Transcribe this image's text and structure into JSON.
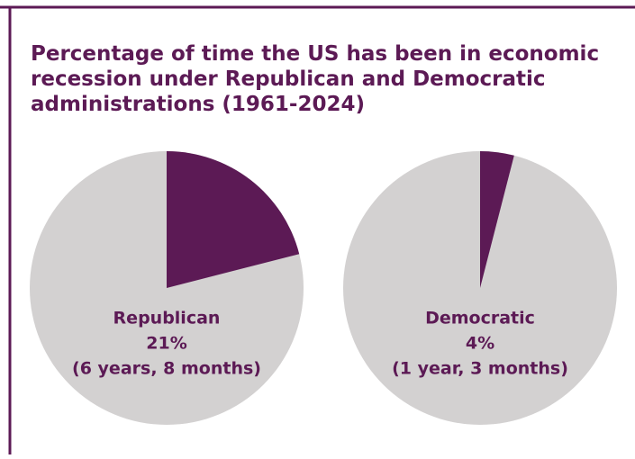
{
  "title": [
    "Percentage of time the US has been in economic",
    "recession under Republican and Democratic",
    "administrations (1961-2024)"
  ],
  "chart_data": [
    {
      "type": "pie",
      "name": "Republican",
      "values": [
        21
      ],
      "value_labels": [
        "21%"
      ],
      "note": "(6 years, 8 months)",
      "color": "#5c1a55",
      "background_color": "#d3d1d1"
    },
    {
      "type": "pie",
      "name": "Democratic",
      "values": [
        4
      ],
      "value_labels": [
        "4%"
      ],
      "note": "(1 year, 3 months)",
      "color": "#5c1a55",
      "background_color": "#d3d1d1"
    }
  ]
}
